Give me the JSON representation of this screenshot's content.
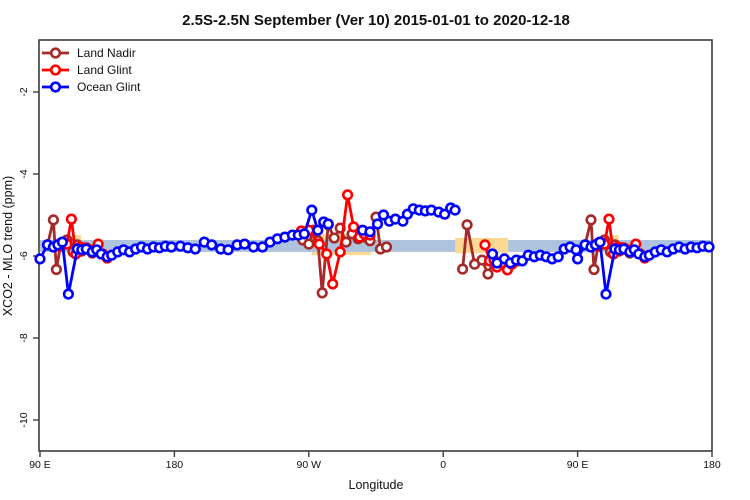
{
  "chart_data": {
    "type": "line",
    "title": "2.5S-2.5N September (Ver 10)   2015-01-01 to 2020-12-18",
    "xlabel": "Longitude",
    "ylabel": "XCO2 - MLO trend (ppm)",
    "xlim": [
      90,
      540
    ],
    "ylim": [
      -10.8,
      -0.75
    ],
    "grid": "off",
    "x_ticks": [
      {
        "pos": 90,
        "label": "90 E"
      },
      {
        "pos": 180,
        "label": "180"
      },
      {
        "pos": 270,
        "label": "90 W"
      },
      {
        "pos": 360,
        "label": "0"
      },
      {
        "pos": 450,
        "label": "90 E"
      },
      {
        "pos": 540,
        "label": "180"
      }
    ],
    "y_ticks": [
      {
        "pos": -2,
        "label": "-2"
      },
      {
        "pos": -4,
        "label": "-4"
      },
      {
        "pos": -6,
        "label": "-6"
      },
      {
        "pos": -8,
        "label": "-8"
      },
      {
        "pos": -10,
        "label": "-10"
      }
    ],
    "legend": {
      "position": "top-left",
      "items": [
        {
          "label": "Land Nadir",
          "color": "#A52A2A"
        },
        {
          "label": "Land Glint",
          "color": "#FF0000"
        },
        {
          "label": "Ocean Glint",
          "color": "#0000FF"
        }
      ]
    },
    "bands": {
      "reference_band": {
        "lon": [
          90,
          538.8
        ],
        "val": [
          -5.61,
          -5.9
        ],
        "color": "#AEC3DD"
      },
      "highlight_bands": [
        {
          "lon": [
            113,
            117.5
          ],
          "val": [
            -5.49,
            -5.98
          ],
          "color": "#FCD993",
          "front": false
        },
        {
          "lon": [
            272,
            311.5
          ],
          "val": [
            -5.46,
            -5.98
          ],
          "color": "#FCD993",
          "front": false
        },
        {
          "lon": [
            368,
            403.5
          ],
          "val": [
            -5.56,
            -5.93
          ],
          "color": "#FCD993",
          "front": true
        },
        {
          "lon": [
            473,
            477.5
          ],
          "val": [
            -5.49,
            -5.98
          ],
          "color": "#FCD993",
          "front": false
        }
      ]
    },
    "series": [
      {
        "name": "Land Nadir",
        "color": "#A52A2A",
        "segments": [
          [
            [
              95,
              -5.73
            ],
            [
              99,
              -5.12
            ],
            [
              101,
              -6.33
            ],
            [
              104,
              -5.68
            ],
            [
              108,
              -5.61
            ],
            [
              112,
              -5.9
            ],
            [
              115,
              -5.73
            ],
            [
              118,
              -5.88
            ],
            [
              121,
              -5.8
            ],
            [
              125,
              -5.93
            ]
          ],
          [
            [
              266,
              -5.61
            ],
            [
              270,
              -5.71
            ],
            [
              273,
              -5.37
            ],
            [
              276,
              -5.63
            ],
            [
              279,
              -6.9
            ],
            [
              283,
              -5.24
            ],
            [
              287,
              -5.56
            ],
            [
              291,
              -5.32
            ],
            [
              295,
              -5.66
            ],
            [
              299,
              -5.46
            ],
            [
              303,
              -5.58
            ],
            [
              307,
              -5.54
            ],
            [
              311,
              -5.63
            ],
            [
              315,
              -5.05
            ],
            [
              318,
              -5.83
            ],
            [
              322,
              -5.78
            ]
          ],
          [
            [
              373,
              -6.32
            ],
            [
              376,
              -5.24
            ],
            [
              381,
              -6.2
            ],
            [
              386,
              -6.1
            ],
            [
              390,
              -6.44
            ],
            [
              394,
              -6.1
            ],
            [
              398,
              -6.2
            ],
            [
              402,
              -6.15
            ],
            [
              406,
              -6.2
            ],
            [
              410,
              -6.12
            ]
          ],
          [
            [
              455,
              -5.73
            ],
            [
              459,
              -5.12
            ],
            [
              461,
              -6.33
            ],
            [
              464,
              -5.68
            ],
            [
              468,
              -5.61
            ],
            [
              472,
              -5.9
            ],
            [
              475,
              -5.73
            ],
            [
              478,
              -5.88
            ],
            [
              481,
              -5.8
            ],
            [
              485,
              -5.93
            ]
          ]
        ]
      },
      {
        "name": "Land Glint",
        "color": "#FF0000",
        "segments": [
          [
            [
              104,
              -5.76
            ],
            [
              108,
              -5.71
            ],
            [
              111,
              -5.1
            ],
            [
              114,
              -5.95
            ],
            [
              117,
              -5.78
            ],
            [
              120,
              -5.8
            ],
            [
              123,
              -5.85
            ],
            [
              126,
              -5.85
            ],
            [
              129,
              -5.71
            ],
            [
              132,
              -5.95
            ],
            [
              135,
              -6.05
            ]
          ],
          [
            [
              265,
              -5.39
            ],
            [
              270,
              -5.37
            ],
            [
              277,
              -5.71
            ],
            [
              282,
              -5.95
            ],
            [
              286,
              -6.68
            ],
            [
              291,
              -5.9
            ],
            [
              296,
              -4.51
            ],
            [
              300,
              -5.29
            ],
            [
              304,
              -5.54
            ],
            [
              307,
              -5.46
            ],
            [
              311,
              -5.49
            ]
          ],
          [
            [
              388,
              -5.73
            ],
            [
              391,
              -6.12
            ],
            [
              394,
              -6.1
            ],
            [
              396,
              -6.27
            ],
            [
              399,
              -6.17
            ],
            [
              403,
              -6.34
            ],
            [
              406,
              -6.2
            ]
          ],
          [
            [
              464,
              -5.76
            ],
            [
              468,
              -5.71
            ],
            [
              471,
              -5.1
            ],
            [
              474,
              -5.95
            ],
            [
              477,
              -5.78
            ],
            [
              480,
              -5.8
            ],
            [
              483,
              -5.85
            ],
            [
              486,
              -5.85
            ],
            [
              489,
              -5.71
            ],
            [
              492,
              -5.95
            ],
            [
              495,
              -6.05
            ]
          ]
        ]
      },
      {
        "name": "Ocean Glint",
        "color": "#0000FF",
        "segments": [
          [
            [
              90,
              -6.07
            ],
            [
              95,
              -5.73
            ],
            [
              99,
              -5.78
            ],
            [
              102,
              -5.73
            ],
            [
              105,
              -5.66
            ],
            [
              109,
              -6.93
            ],
            [
              115,
              -5.83
            ],
            [
              118,
              -5.85
            ],
            [
              121,
              -5.83
            ],
            [
              125,
              -5.9
            ],
            [
              128,
              -5.85
            ],
            [
              131,
              -5.95
            ],
            [
              135,
              -6.02
            ],
            [
              138,
              -5.98
            ],
            [
              142,
              -5.9
            ],
            [
              146,
              -5.85
            ],
            [
              150,
              -5.9
            ],
            [
              154,
              -5.83
            ],
            [
              158,
              -5.78
            ],
            [
              162,
              -5.83
            ],
            [
              166,
              -5.78
            ],
            [
              170,
              -5.8
            ],
            [
              174,
              -5.76
            ],
            [
              178,
              -5.78
            ],
            [
              184,
              -5.76
            ],
            [
              189,
              -5.8
            ],
            [
              194,
              -5.83
            ],
            [
              200,
              -5.66
            ],
            [
              205,
              -5.73
            ],
            [
              211,
              -5.83
            ],
            [
              216,
              -5.85
            ],
            [
              222,
              -5.73
            ],
            [
              227,
              -5.71
            ],
            [
              233,
              -5.78
            ],
            [
              239,
              -5.78
            ],
            [
              244,
              -5.66
            ],
            [
              249,
              -5.58
            ],
            [
              254,
              -5.54
            ],
            [
              259,
              -5.49
            ],
            [
              263,
              -5.49
            ],
            [
              267,
              -5.46
            ],
            [
              272,
              -4.88
            ],
            [
              276,
              -5.37
            ],
            [
              280,
              -5.17
            ],
            [
              283,
              -5.22
            ]
          ],
          [
            [
              306,
              -5.37
            ],
            [
              311,
              -5.41
            ],
            [
              316,
              -5.22
            ],
            [
              320,
              -5.0
            ],
            [
              324,
              -5.15
            ],
            [
              328,
              -5.1
            ],
            [
              333,
              -5.15
            ],
            [
              336,
              -4.98
            ],
            [
              340,
              -4.85
            ],
            [
              344,
              -4.88
            ],
            [
              348,
              -4.9
            ],
            [
              352,
              -4.88
            ],
            [
              357,
              -4.93
            ],
            [
              361,
              -4.98
            ],
            [
              365,
              -4.83
            ],
            [
              368,
              -4.88
            ]
          ],
          [
            [
              393,
              -5.95
            ],
            [
              396,
              -6.17
            ],
            [
              401,
              -6.07
            ],
            [
              405,
              -6.17
            ],
            [
              409,
              -6.1
            ],
            [
              413,
              -6.12
            ],
            [
              417,
              -5.98
            ],
            [
              421,
              -6.02
            ],
            [
              425,
              -5.98
            ],
            [
              429,
              -6.02
            ],
            [
              433,
              -6.07
            ],
            [
              437,
              -6.02
            ],
            [
              441,
              -5.83
            ],
            [
              445,
              -5.78
            ],
            [
              449,
              -5.85
            ],
            [
              450,
              -6.07
            ],
            [
              455,
              -5.73
            ],
            [
              459,
              -5.78
            ],
            [
              462,
              -5.73
            ],
            [
              465,
              -5.66
            ],
            [
              469,
              -6.93
            ],
            [
              475,
              -5.83
            ],
            [
              478,
              -5.85
            ],
            [
              481,
              -5.83
            ],
            [
              485,
              -5.9
            ],
            [
              488,
              -5.85
            ],
            [
              491,
              -5.95
            ],
            [
              495,
              -6.02
            ],
            [
              498,
              -5.98
            ],
            [
              502,
              -5.9
            ],
            [
              506,
              -5.85
            ],
            [
              510,
              -5.9
            ],
            [
              514,
              -5.83
            ],
            [
              518,
              -5.78
            ],
            [
              522,
              -5.83
            ],
            [
              526,
              -5.78
            ],
            [
              530,
              -5.8
            ],
            [
              534,
              -5.76
            ],
            [
              538,
              -5.78
            ]
          ]
        ]
      }
    ]
  }
}
